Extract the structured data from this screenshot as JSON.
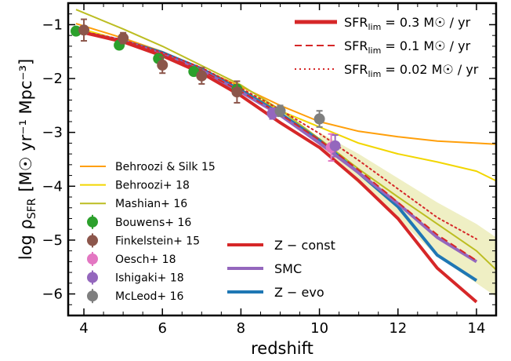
{
  "chart_data": {
    "type": "line",
    "xlabel": "redshift",
    "ylabel": {
      "prefix": "log  ρ",
      "sub": "SFR",
      "units": "[M☉ yr⁻¹ Mpc⁻³]"
    },
    "xlim": [
      3.6,
      14.5
    ],
    "ylim": [
      -6.4,
      -0.6
    ],
    "xticks": [
      4,
      6,
      8,
      10,
      12,
      14
    ],
    "yticks": [
      -1,
      -2,
      -3,
      -4,
      -5,
      -6
    ],
    "colors": {
      "z_const": "#d62728",
      "smc": "#9467bd",
      "z_evo": "#1f77b4",
      "behroozi_silk": "#ff9f0a",
      "behroozi18": "#f2d600",
      "mashian": "#bcbd22",
      "band": "#efefc4",
      "bouwens": "#2ca02c",
      "finkelstein": "#8c564b",
      "oesch": "#e377c2",
      "ishigaki": "#9467bd",
      "mcleod": "#7f7f7f"
    },
    "series": [
      {
        "name": "Behroozi & Silk 15",
        "key": "behroozi_silk",
        "style": "solid",
        "width": 2,
        "x": [
          3.8,
          5,
          6,
          7,
          8,
          9,
          10,
          11,
          12,
          13,
          14,
          14.5
        ],
        "y": [
          -0.98,
          -1.25,
          -1.5,
          -1.82,
          -2.15,
          -2.5,
          -2.8,
          -2.98,
          -3.08,
          -3.16,
          -3.2,
          -3.22
        ]
      },
      {
        "name": "Behroozi+ 18",
        "key": "behroozi18",
        "style": "solid",
        "width": 2,
        "x": [
          3.8,
          5,
          6,
          7,
          8,
          9,
          10,
          11,
          12,
          13,
          14,
          14.5
        ],
        "y": [
          -1.05,
          -1.3,
          -1.55,
          -1.85,
          -2.2,
          -2.6,
          -2.9,
          -3.2,
          -3.4,
          -3.55,
          -3.72,
          -3.9
        ]
      },
      {
        "name": "Mashian+ 16",
        "key": "mashian",
        "style": "solid",
        "width": 2,
        "x": [
          3.8,
          5,
          6,
          7,
          8,
          9,
          10,
          11,
          12,
          13,
          14,
          14.5
        ],
        "y": [
          -0.72,
          -1.08,
          -1.4,
          -1.76,
          -2.12,
          -2.58,
          -3.12,
          -3.68,
          -4.2,
          -4.7,
          -5.2,
          -5.55
        ]
      },
      {
        "name": "Z−evo",
        "key": "z_evo",
        "style": "solid",
        "width": 4,
        "x": [
          4,
          5,
          6,
          7,
          8,
          9,
          10,
          11,
          12,
          13,
          14
        ],
        "y": [
          -1.15,
          -1.3,
          -1.52,
          -1.82,
          -2.22,
          -2.65,
          -3.15,
          -3.75,
          -4.38,
          -5.28,
          -5.75
        ]
      },
      {
        "name": "SMC",
        "key": "smc",
        "style": "solid",
        "width": 4,
        "x": [
          4,
          5,
          6,
          7,
          8,
          9,
          10,
          11,
          12,
          13,
          14
        ],
        "y": [
          -1.15,
          -1.3,
          -1.55,
          -1.85,
          -2.25,
          -2.68,
          -3.2,
          -3.75,
          -4.32,
          -4.95,
          -5.4
        ]
      },
      {
        "name": "Z−const",
        "key": "z_const",
        "style": "solid",
        "width": 4,
        "x": [
          4,
          5,
          6,
          7,
          8,
          9,
          10,
          11,
          12,
          13,
          14
        ],
        "y": [
          -1.15,
          -1.32,
          -1.58,
          -1.9,
          -2.32,
          -2.82,
          -3.28,
          -3.9,
          -4.6,
          -5.52,
          -6.15
        ]
      },
      {
        "name": "SFR_lim = 0.1",
        "key": "z_const",
        "style": "dashed",
        "width": 2,
        "x": [
          4,
          5,
          6,
          7,
          8,
          9,
          10,
          11,
          12,
          13,
          14
        ],
        "y": [
          -1.15,
          -1.3,
          -1.55,
          -1.85,
          -2.24,
          -2.66,
          -3.14,
          -3.7,
          -4.3,
          -4.9,
          -5.38
        ]
      },
      {
        "name": "SFR_lim = 0.02",
        "key": "z_const",
        "style": "dotted",
        "width": 2,
        "x": [
          4,
          5,
          6,
          7,
          8,
          9,
          10,
          11,
          12,
          13,
          14
        ],
        "y": [
          -1.13,
          -1.28,
          -1.52,
          -1.8,
          -2.18,
          -2.58,
          -3.02,
          -3.52,
          -4.05,
          -4.58,
          -4.98
        ]
      }
    ],
    "band": {
      "x": [
        10,
        11,
        12,
        13,
        14,
        14.5
      ],
      "upper": [
        -3.0,
        -3.4,
        -3.85,
        -4.3,
        -4.7,
        -4.95
      ],
      "lower": [
        -3.3,
        -3.95,
        -4.6,
        -5.3,
        -5.8,
        -6.05
      ]
    },
    "points": [
      {
        "name": "Bouwens+ 16",
        "key": "bouwens",
        "data": [
          {
            "x": 3.8,
            "y": -1.12,
            "e": 0.05
          },
          {
            "x": 4.9,
            "y": -1.38,
            "e": 0.06
          },
          {
            "x": 5.9,
            "y": -1.63,
            "e": 0.06
          },
          {
            "x": 6.8,
            "y": -1.87,
            "e": 0.06
          },
          {
            "x": 7.9,
            "y": -2.2,
            "e": 0.08
          }
        ]
      },
      {
        "name": "Finkelstein+ 15",
        "key": "finkelstein",
        "data": [
          {
            "x": 4.0,
            "y": -1.1,
            "e": 0.2
          },
          {
            "x": 5.0,
            "y": -1.25,
            "e": 0.1
          },
          {
            "x": 6.0,
            "y": -1.75,
            "e": 0.15
          },
          {
            "x": 7.0,
            "y": -1.95,
            "e": 0.15
          },
          {
            "x": 7.9,
            "y": -2.25,
            "e": 0.2
          }
        ]
      },
      {
        "name": "Oesch+ 18",
        "key": "oesch",
        "data": [
          {
            "x": 10.3,
            "y": -3.28,
            "e": 0.25
          }
        ]
      },
      {
        "name": "Ishigaki+ 18",
        "key": "ishigaki",
        "data": [
          {
            "x": 8.8,
            "y": -2.65,
            "e": 0.1
          },
          {
            "x": 10.4,
            "y": -3.25,
            "e": 0.2
          }
        ]
      },
      {
        "name": "McLeod+ 16",
        "key": "mcleod",
        "data": [
          {
            "x": 9.0,
            "y": -2.6,
            "e": 0.1
          },
          {
            "x": 10.0,
            "y": -2.75,
            "e": 0.15
          }
        ]
      }
    ],
    "legend_top_right": [
      {
        "label": "SFR",
        "sub": "lim",
        "value": " = 0.3 M☉ / yr",
        "style": "solid"
      },
      {
        "label": "SFR",
        "sub": "lim",
        "value": " = 0.1 M☉ / yr",
        "style": "dashed"
      },
      {
        "label": "SFR",
        "sub": "lim",
        "value": " = 0.02 M☉ / yr",
        "style": "dotted"
      }
    ],
    "legend_left": [
      "Behroozi & Silk 15",
      "Behroozi+ 18",
      "Mashian+ 16",
      "Bouwens+ 16",
      "Finkelstein+ 15",
      "Oesch+ 18",
      "Ishigaki+ 18",
      "McLeod+ 16"
    ],
    "legend_mid": [
      "Z − const",
      "SMC",
      "Z − evo"
    ]
  }
}
